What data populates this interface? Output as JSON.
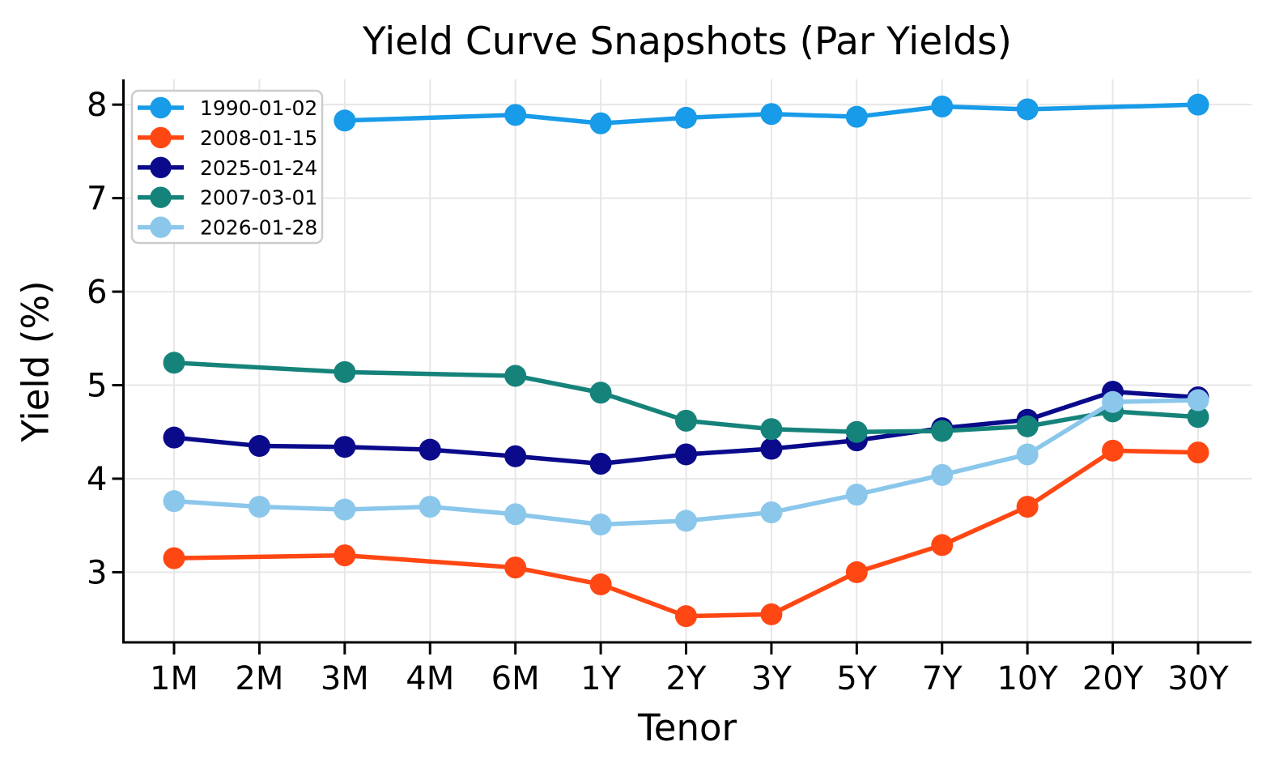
{
  "chart_data": {
    "type": "line",
    "title": "Yield Curve Snapshots (Par Yields)",
    "xlabel": "Tenor",
    "ylabel": "Yield (%)",
    "categories": [
      "1M",
      "2M",
      "3M",
      "4M",
      "6M",
      "1Y",
      "2Y",
      "3Y",
      "5Y",
      "7Y",
      "10Y",
      "20Y",
      "30Y"
    ],
    "yticks": [
      3,
      4,
      5,
      6,
      7,
      8
    ],
    "ylim": [
      2.25,
      8.27
    ],
    "grid": true,
    "grid_color": "#E7E7E7",
    "spine_color": "#000000",
    "legend_position": "upper left",
    "series": [
      {
        "name": "1990-01-02",
        "color": "#189BE8",
        "values": [
          null,
          null,
          7.83,
          null,
          7.89,
          7.8,
          7.86,
          7.9,
          7.87,
          7.98,
          7.95,
          null,
          8.0
        ]
      },
      {
        "name": "2008-01-15",
        "color": "#FF4713",
        "values": [
          3.15,
          null,
          3.18,
          null,
          3.05,
          2.87,
          2.53,
          2.55,
          3.0,
          3.29,
          3.7,
          4.3,
          4.28
        ]
      },
      {
        "name": "2025-01-24",
        "color": "#0A0A8B",
        "values": [
          4.44,
          4.35,
          4.34,
          4.31,
          4.24,
          4.16,
          4.26,
          4.32,
          4.41,
          4.54,
          4.63,
          4.93,
          4.87
        ]
      },
      {
        "name": "2007-03-01",
        "color": "#16837B",
        "values": [
          5.24,
          null,
          5.14,
          null,
          5.1,
          4.92,
          4.62,
          4.53,
          4.5,
          4.51,
          4.56,
          4.72,
          4.66
        ]
      },
      {
        "name": "2026-01-28",
        "color": "#8BC7EB",
        "values": [
          3.76,
          3.7,
          3.67,
          3.7,
          3.62,
          3.51,
          3.55,
          3.64,
          3.83,
          4.04,
          4.26,
          4.82,
          4.84
        ]
      }
    ]
  }
}
